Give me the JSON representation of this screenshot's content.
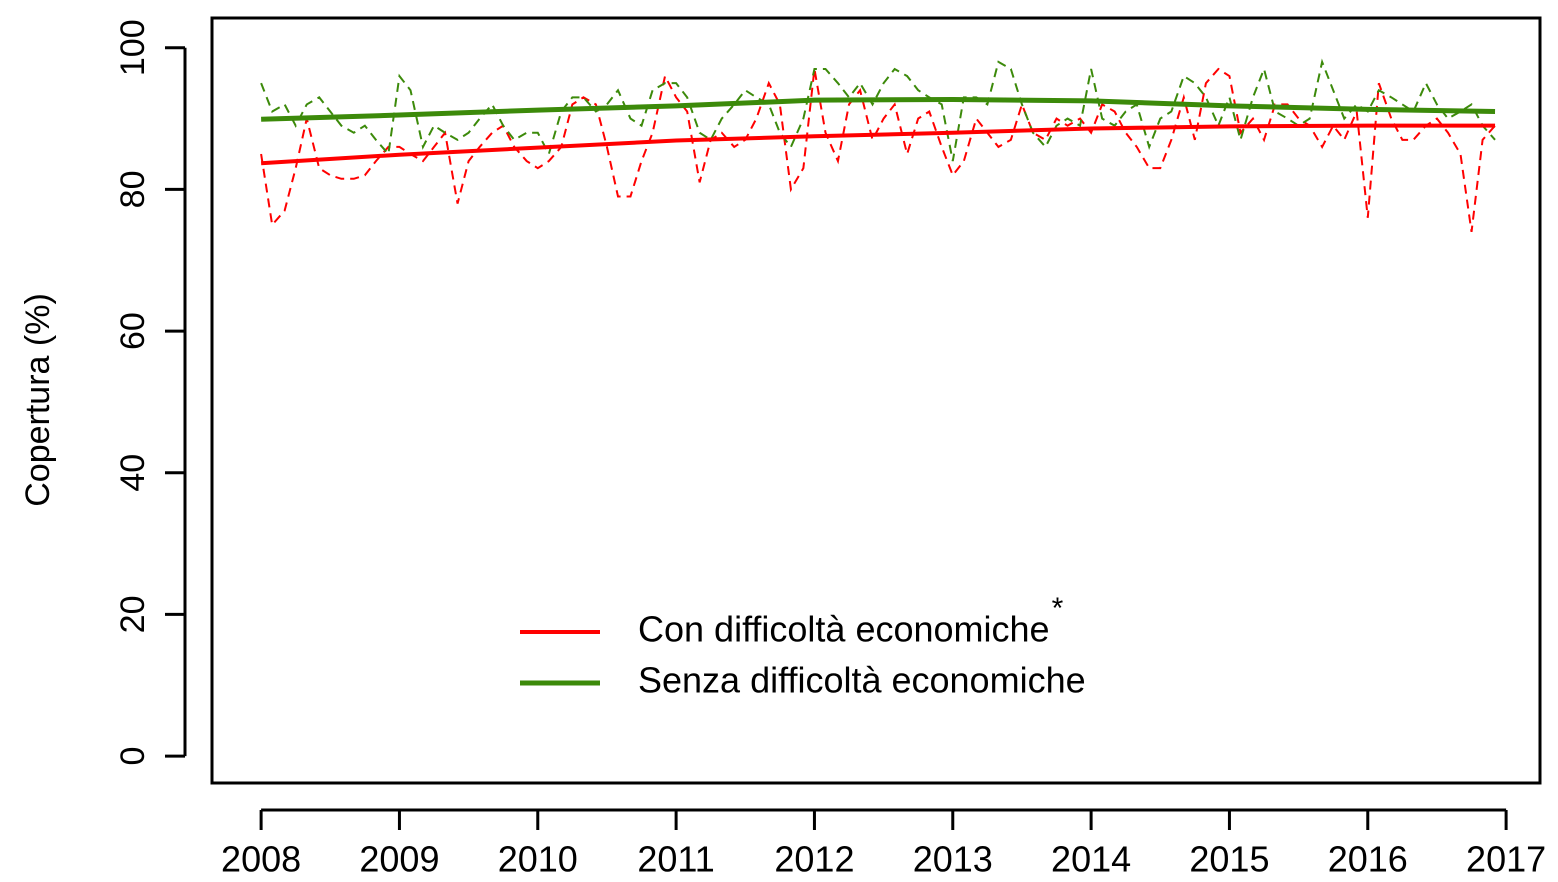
{
  "chart_data": {
    "type": "line",
    "y_label": "Copertura (%)",
    "xlim": [
      2007.645,
      2017.245
    ],
    "ylim": [
      -3.8,
      104.2
    ],
    "xticks": [
      2008,
      2009,
      2010,
      2011,
      2012,
      2013,
      2014,
      2015,
      2016,
      2017
    ],
    "yticks": [
      0,
      20,
      40,
      60,
      80,
      100
    ],
    "grid": false,
    "legend": "bottom",
    "series": [
      {
        "name": "Con difficoltà economiche",
        "name_note": "*",
        "color": "#ff0000",
        "dash": false,
        "width": 4,
        "x": [
          2008,
          2009,
          2010,
          2011,
          2012,
          2013,
          2014,
          2015,
          2016,
          2016.92
        ],
        "values": [
          83.7,
          84.9,
          85.9,
          86.9,
          87.5,
          88.0,
          88.6,
          88.9,
          89.0,
          89.0
        ]
      },
      {
        "name": "Senza difficoltà economiche",
        "color": "#3c8a0a",
        "dash": false,
        "width": 5,
        "x": [
          2008,
          2009,
          2010,
          2011,
          2012,
          2013,
          2014,
          2015,
          2016,
          2016.92
        ],
        "values": [
          89.9,
          90.5,
          91.2,
          91.8,
          92.6,
          92.7,
          92.5,
          91.8,
          91.3,
          91.0
        ]
      },
      {
        "color": "#ff0000",
        "dash": true,
        "width": 2,
        "x": [
          2008.0,
          2008.08,
          2008.17,
          2008.25,
          2008.33,
          2008.42,
          2008.5,
          2008.58,
          2008.67,
          2008.75,
          2008.83,
          2008.92,
          2009.0,
          2009.08,
          2009.17,
          2009.25,
          2009.33,
          2009.42,
          2009.5,
          2009.58,
          2009.67,
          2009.75,
          2009.83,
          2009.92,
          2010.0,
          2010.08,
          2010.17,
          2010.25,
          2010.33,
          2010.42,
          2010.5,
          2010.58,
          2010.67,
          2010.75,
          2010.83,
          2010.92,
          2011.0,
          2011.08,
          2011.17,
          2011.25,
          2011.33,
          2011.42,
          2011.5,
          2011.58,
          2011.67,
          2011.75,
          2011.83,
          2011.92,
          2012.0,
          2012.08,
          2012.17,
          2012.25,
          2012.33,
          2012.42,
          2012.5,
          2012.58,
          2012.67,
          2012.75,
          2012.83,
          2012.92,
          2013.0,
          2013.08,
          2013.17,
          2013.25,
          2013.33,
          2013.42,
          2013.5,
          2013.58,
          2013.67,
          2013.75,
          2013.83,
          2013.92,
          2014.0,
          2014.08,
          2014.17,
          2014.25,
          2014.33,
          2014.42,
          2014.5,
          2014.58,
          2014.67,
          2014.75,
          2014.83,
          2014.92,
          2015.0,
          2015.08,
          2015.17,
          2015.25,
          2015.33,
          2015.42,
          2015.5,
          2015.58,
          2015.67,
          2015.75,
          2015.83,
          2015.92,
          2016.0,
          2016.08,
          2016.17,
          2016.25,
          2016.33,
          2016.42,
          2016.5,
          2016.58,
          2016.67,
          2016.75,
          2016.83,
          2016.92
        ],
        "values": [
          85,
          75,
          77,
          83,
          90,
          83,
          82,
          81.5,
          81.5,
          82,
          84,
          86,
          86,
          85,
          84,
          86,
          88,
          78,
          84,
          86,
          88,
          89,
          86,
          84,
          83,
          84,
          86,
          92,
          93,
          92,
          86,
          79,
          79,
          84,
          88,
          96,
          93,
          91,
          81,
          87,
          88,
          86,
          87,
          90,
          95,
          92,
          80,
          83,
          97,
          88,
          84,
          92,
          94,
          87,
          90,
          92,
          85,
          90,
          91,
          86,
          82,
          84,
          90,
          88,
          86,
          87,
          92,
          88,
          87,
          90,
          89,
          90,
          88,
          92,
          91,
          88,
          86,
          83,
          83,
          87,
          93,
          87,
          95,
          97,
          96,
          88,
          90,
          87,
          92,
          92,
          90,
          89,
          86,
          89,
          87,
          91,
          76,
          95,
          90,
          87,
          87,
          89,
          90,
          88,
          85,
          74,
          87,
          89
        ]
      },
      {
        "color": "#3c8a0a",
        "dash": true,
        "width": 2,
        "x": [
          2008.0,
          2008.08,
          2008.17,
          2008.25,
          2008.33,
          2008.42,
          2008.5,
          2008.58,
          2008.67,
          2008.75,
          2008.83,
          2008.92,
          2009.0,
          2009.08,
          2009.17,
          2009.25,
          2009.33,
          2009.42,
          2009.5,
          2009.58,
          2009.67,
          2009.75,
          2009.83,
          2009.92,
          2010.0,
          2010.08,
          2010.17,
          2010.25,
          2010.33,
          2010.42,
          2010.5,
          2010.58,
          2010.67,
          2010.75,
          2010.83,
          2010.92,
          2011.0,
          2011.08,
          2011.17,
          2011.25,
          2011.33,
          2011.42,
          2011.5,
          2011.58,
          2011.67,
          2011.75,
          2011.83,
          2011.92,
          2012.0,
          2012.08,
          2012.17,
          2012.25,
          2012.33,
          2012.42,
          2012.5,
          2012.58,
          2012.67,
          2012.75,
          2012.83,
          2012.92,
          2013.0,
          2013.08,
          2013.17,
          2013.25,
          2013.33,
          2013.42,
          2013.5,
          2013.58,
          2013.67,
          2013.75,
          2013.83,
          2013.92,
          2014.0,
          2014.08,
          2014.17,
          2014.25,
          2014.33,
          2014.42,
          2014.5,
          2014.58,
          2014.67,
          2014.75,
          2014.83,
          2014.92,
          2015.0,
          2015.08,
          2015.17,
          2015.25,
          2015.33,
          2015.42,
          2015.5,
          2015.58,
          2015.67,
          2015.75,
          2015.83,
          2015.92,
          2016.0,
          2016.08,
          2016.17,
          2016.25,
          2016.33,
          2016.42,
          2016.5,
          2016.58,
          2016.67,
          2016.75,
          2016.83,
          2016.92
        ],
        "values": [
          95,
          91,
          92,
          89,
          92,
          93,
          91,
          89,
          88,
          89,
          87,
          85,
          96,
          94,
          86,
          89,
          88,
          87,
          88,
          90,
          92,
          89,
          87,
          88,
          88,
          85,
          91,
          93,
          93,
          91,
          92,
          94,
          90,
          89,
          94,
          95,
          95,
          93,
          88,
          87,
          90,
          92,
          94,
          93,
          92,
          88,
          86,
          90,
          97,
          97,
          95,
          93,
          95,
          92,
          95,
          97,
          96,
          94,
          93,
          92,
          84,
          93,
          93,
          92,
          98,
          97,
          92,
          88,
          86,
          89,
          90,
          89,
          97,
          90,
          89,
          91,
          92,
          86,
          90,
          91,
          96,
          95,
          93,
          89,
          93,
          87,
          93,
          97,
          91,
          90,
          89,
          90,
          98,
          94,
          90,
          92,
          91,
          94,
          93,
          92,
          91,
          95,
          92,
          90,
          91,
          92,
          89,
          87
        ]
      }
    ]
  }
}
